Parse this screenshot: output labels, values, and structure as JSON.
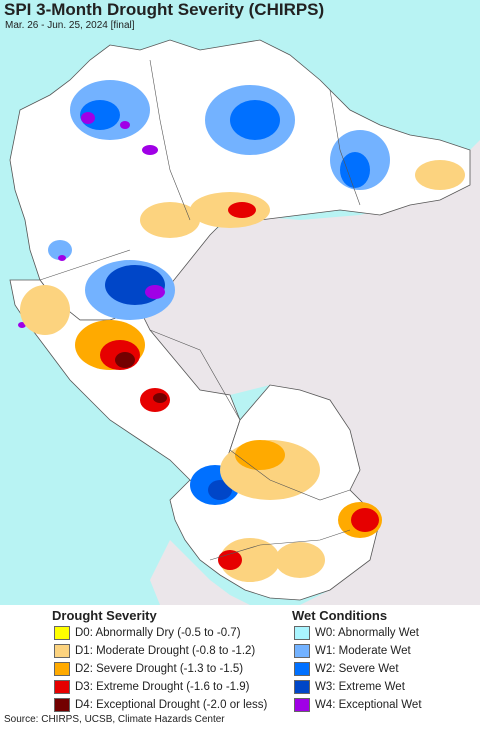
{
  "header": {
    "title": "SPI 3-Month Drought Severity (CHIRPS)",
    "subtitle": "Mar. 26 - Jun. 25, 2024 [final]"
  },
  "colors": {
    "ocean": "#b8f3f3",
    "outside": "#ebe6ea",
    "neutral": "#ffffff",
    "border": "#555555",
    "D0": "#ffff00",
    "D1": "#fcd37f",
    "D2": "#ffaa00",
    "D3": "#e60000",
    "D4": "#730000",
    "W0": "#aaf5ff",
    "W1": "#73b2ff",
    "W2": "#0070ff",
    "W3": "#0046c8",
    "W4": "#a000e6"
  },
  "legend": {
    "drought_title": "Drought Severity",
    "wet_title": "Wet Conditions",
    "drought": [
      {
        "code": "D0",
        "label": "D0: Abnormally Dry (-0.5 to -0.7)"
      },
      {
        "code": "D1",
        "label": "D1: Moderate Drought (-0.8 to -1.2)"
      },
      {
        "code": "D2",
        "label": "D2: Severe Drought (-1.3 to -1.5)"
      },
      {
        "code": "D3",
        "label": "D3: Extreme Drought (-1.6 to -1.9)"
      },
      {
        "code": "D4",
        "label": "D4: Exceptional Drought (-2.0 or less)"
      }
    ],
    "wet": [
      {
        "code": "W0",
        "label": "W0: Abnormally Wet"
      },
      {
        "code": "W1",
        "label": "W1: Moderate Wet"
      },
      {
        "code": "W2",
        "label": "W2: Severe Wet"
      },
      {
        "code": "W3",
        "label": "W3: Extreme Wet"
      },
      {
        "code": "W4",
        "label": "W4: Exceptional Wet"
      }
    ]
  },
  "footer": {
    "source": "Source: CHIRPS, UCSB, Climate Hazards Center"
  }
}
